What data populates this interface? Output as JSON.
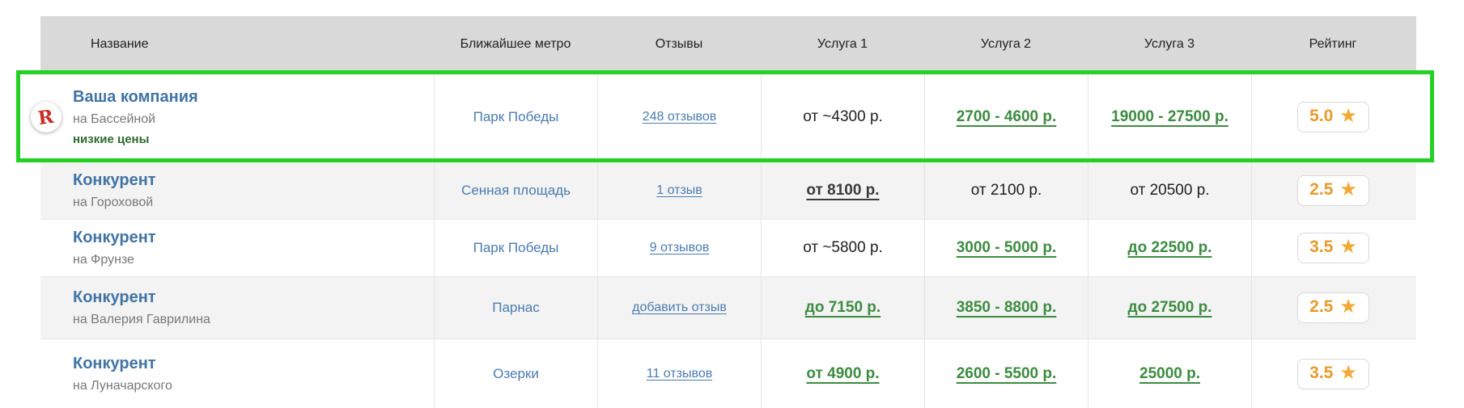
{
  "header": {
    "columns": [
      "Название",
      "Ближайшее метро",
      "Отзывы",
      "Услуга 1",
      "Услуга 2",
      "Услуга 3",
      "Рейтинг"
    ]
  },
  "icons": {
    "company_logo_letter": "R",
    "star": "★"
  },
  "colors": {
    "highlight_border": "#25d025",
    "header_bg": "#d9d9d9",
    "link_blue": "#4a7cb0",
    "name_blue": "#4173a5",
    "green_price": "#3c8c40",
    "note_green": "#2e6b2e",
    "rating_orange": "#ea9a2b",
    "star_amber": "#f2a832"
  },
  "rows": [
    {
      "name": "Ваша компания",
      "address": "на Бассейной",
      "note": "низкие цены",
      "metro": "Парк Победы",
      "reviews": "248 отзывов",
      "service1": "от ~4300 р.",
      "service2": "2700 - 4600 р.",
      "service3": "19000 - 27500 р.",
      "rating": "5.0"
    },
    {
      "name": "Конкурент",
      "address": "на Гороховой",
      "metro": "Сенная площадь",
      "reviews": "1 отзыв",
      "service1": "от 8100 р.",
      "service2": "от 2100 р.",
      "service3": "от 20500 р.",
      "rating": "2.5"
    },
    {
      "name": "Конкурент",
      "address": "на Фрунзе",
      "metro": "Парк Победы",
      "reviews": "9 отзывов",
      "service1": "от ~5800 р.",
      "service2": "3000 - 5000 р.",
      "service3": "до 22500 р.",
      "rating": "3.5"
    },
    {
      "name": "Конкурент",
      "address": "на Валерия Гаврилина",
      "metro": "Парнас",
      "reviews": "добавить отзыв",
      "service1": "до 7150 р.",
      "service2": "3850 - 8800 р.",
      "service3": "до 27500 р.",
      "rating": "2.5"
    },
    {
      "name": "Конкурент",
      "address": "на Луначарского",
      "metro": "Озерки",
      "reviews": "11 отзывов",
      "service1": "от 4900 р.",
      "service2": "2600 - 5500 р.",
      "service3": "25000 р.",
      "rating": "3.5"
    }
  ]
}
